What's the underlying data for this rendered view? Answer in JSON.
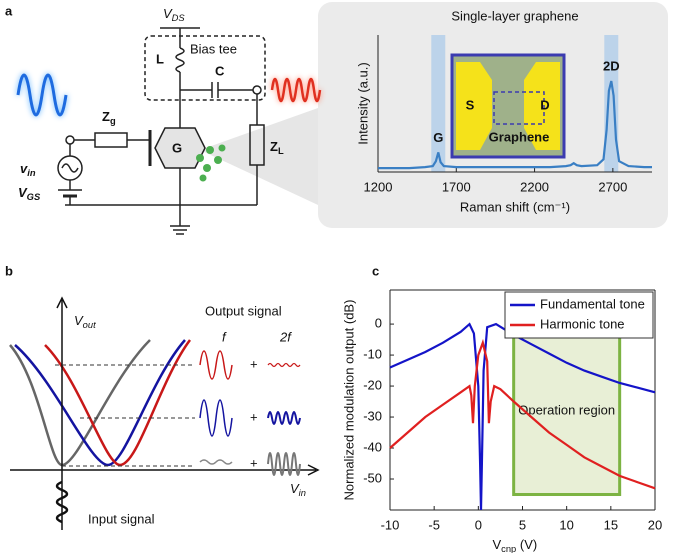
{
  "panel_labels": [
    "a",
    "b",
    "c"
  ],
  "circuit": {
    "vds": {
      "main": "V",
      "sub": "DS"
    },
    "inductor": "L",
    "bias_tee": "Bias tee",
    "capacitor": "C",
    "zg": {
      "main": "Z",
      "sub": "g"
    },
    "gate": "G",
    "vin": {
      "main": "v",
      "sub": "in"
    },
    "vgs": {
      "main": "V",
      "sub": "GS"
    },
    "zl": {
      "main": "Z",
      "sub": "L"
    }
  },
  "schematic": {
    "y_axis": {
      "main": "V",
      "sub": "out"
    },
    "x_axis": {
      "main": "V",
      "sub": "in"
    },
    "output_signal": "Output signal",
    "f": "f",
    "two_f": "2f",
    "plus": "+",
    "input_signal": "Input signal"
  },
  "chart_data": [
    {
      "type": "line",
      "title": "Single-layer graphene",
      "x_label": "Raman shift (cm⁻¹)",
      "y_label": "Intensity (a.u.)",
      "xlim": [
        1200,
        2950
      ],
      "xticks": [
        1200,
        1700,
        2200,
        2700
      ],
      "ylim": [
        0,
        1.4
      ],
      "color": "#3a7fc4",
      "peaks": [
        {
          "label": "G",
          "x": 1585
        },
        {
          "label": "2D",
          "x": 2690
        }
      ],
      "inset": {
        "source": "S",
        "drain": "D",
        "channel": "Graphene"
      },
      "series": [
        {
          "x": [
            1200,
            1300,
            1400,
            1500,
            1550,
            1570,
            1585,
            1600,
            1620,
            1700,
            1800,
            1900,
            2000,
            2100,
            2200,
            2300,
            2400,
            2430,
            2450,
            2470,
            2500,
            2600,
            2640,
            2660,
            2675,
            2690,
            2705,
            2720,
            2740,
            2800,
            2900,
            2950
          ],
          "values": [
            0.04,
            0.04,
            0.04,
            0.05,
            0.06,
            0.11,
            0.2,
            0.1,
            0.06,
            0.05,
            0.05,
            0.05,
            0.05,
            0.05,
            0.05,
            0.05,
            0.06,
            0.07,
            0.09,
            0.07,
            0.06,
            0.07,
            0.13,
            0.43,
            0.83,
            0.93,
            0.78,
            0.33,
            0.11,
            0.06,
            0.05,
            0.05
          ]
        }
      ]
    },
    {
      "type": "line",
      "x_label": {
        "main": "V",
        "sub": "cnp",
        "unit": " (V)"
      },
      "y_label": "Normalized modulation output (dB)",
      "xlim": [
        -10,
        20
      ],
      "xticks": [
        -10,
        -5,
        0,
        5,
        10,
        15,
        20
      ],
      "ylim": [
        -60,
        11
      ],
      "yticks": [
        0,
        -10,
        -20,
        -30,
        -40,
        -50
      ],
      "legend": "upper right",
      "region": {
        "label": "Operation region",
        "xlim": [
          4,
          16
        ],
        "ylim": [
          -55,
          -1
        ],
        "color": "#7cb342"
      },
      "series": [
        {
          "name": "Fundamental tone",
          "color": "#1414c8",
          "x": [
            -10,
            -8,
            -6,
            -4,
            -2,
            -1,
            -0.5,
            0,
            0.2,
            0.3,
            0.4,
            0.6,
            1,
            2,
            4,
            6,
            8,
            10,
            12,
            14,
            16,
            18,
            20
          ],
          "values": [
            -14,
            -11.5,
            -9,
            -6,
            -2.5,
            0,
            -3,
            -20,
            -45,
            -60,
            -45,
            -15,
            -1,
            0,
            -3.5,
            -6.5,
            -9.5,
            -12.5,
            -15,
            -17,
            -19,
            -20.5,
            -22
          ]
        },
        {
          "name": "Harmonic tone",
          "color": "#e02020",
          "x": [
            -10,
            -8,
            -6,
            -4,
            -2,
            -1,
            -0.8,
            -0.6,
            -0.4,
            0,
            0.5,
            1,
            1.2,
            1.4,
            1.8,
            2.5,
            4,
            6,
            8,
            10,
            12,
            14,
            16,
            18,
            20
          ],
          "values": [
            -40,
            -35,
            -30,
            -26,
            -22,
            -20,
            -23,
            -32,
            -20,
            -10,
            -6,
            -12,
            -32,
            -25,
            -20,
            -21,
            -25,
            -30,
            -35,
            -39,
            -43,
            -46,
            -49,
            -51,
            -53
          ]
        }
      ]
    }
  ]
}
